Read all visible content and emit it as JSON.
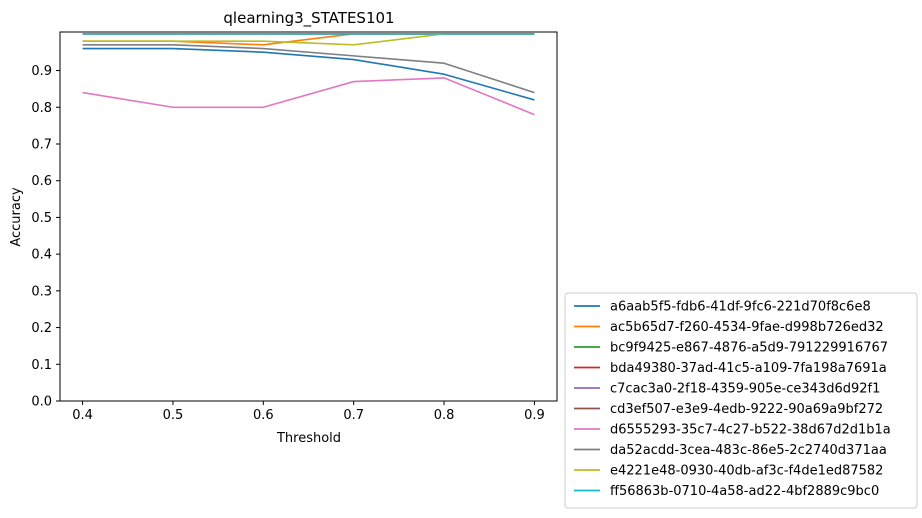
{
  "chart_data": {
    "type": "line",
    "title": "qlearning3_STATES101",
    "xlabel": "Threshold",
    "ylabel": "Accuracy",
    "x": [
      0.4,
      0.5,
      0.6,
      0.7,
      0.8,
      0.9
    ],
    "x_ticks": [
      "0.4",
      "0.5",
      "0.6",
      "0.7",
      "0.8",
      "0.9"
    ],
    "y_ticks": [
      "0.0",
      "0.1",
      "0.2",
      "0.3",
      "0.4",
      "0.5",
      "0.6",
      "0.7",
      "0.8",
      "0.9"
    ],
    "xlim": [
      0.375,
      0.925
    ],
    "ylim": [
      0.0,
      1.005
    ],
    "grid": false,
    "legend_placement": "lower-right-outside",
    "series": [
      {
        "name": "a6aab5f5-fdb6-41df-9fc6-221d70f8c6e8",
        "color": "#1f77b4",
        "values": [
          0.96,
          0.96,
          0.95,
          0.93,
          0.89,
          0.82
        ]
      },
      {
        "name": "ac5b65d7-f260-4534-9fae-d998b726ed32",
        "color": "#ff7f0e",
        "values": [
          0.98,
          0.98,
          0.97,
          1.0,
          1.0,
          1.0
        ]
      },
      {
        "name": "bc9f9425-e867-4876-a5d9-791229916767",
        "color": "#2ca02c",
        "values": [
          1.0,
          1.0,
          1.0,
          1.0,
          1.0,
          1.0
        ]
      },
      {
        "name": "bda49380-37ad-41c5-a109-7fa198a7691a",
        "color": "#d62728",
        "values": [
          1.0,
          1.0,
          1.0,
          1.0,
          1.0,
          1.0
        ]
      },
      {
        "name": "c7cac3a0-2f18-4359-905e-ce343d6d92f1",
        "color": "#9467bd",
        "values": [
          1.0,
          1.0,
          1.0,
          1.0,
          1.0,
          1.0
        ]
      },
      {
        "name": "cd3ef507-e3e9-4edb-9222-90a69a9bf272",
        "color": "#8c564b",
        "values": [
          1.0,
          1.0,
          1.0,
          1.0,
          1.0,
          1.0
        ]
      },
      {
        "name": "d6555293-35c7-4c27-b522-38d67d2d1b1a",
        "color": "#e377c2",
        "values": [
          0.84,
          0.8,
          0.8,
          0.87,
          0.88,
          0.78
        ]
      },
      {
        "name": "da52acdd-3cea-483c-86e5-2c2740d371aa",
        "color": "#7f7f7f",
        "values": [
          0.97,
          0.97,
          0.96,
          0.94,
          0.92,
          0.84
        ]
      },
      {
        "name": "e4221e48-0930-40db-af3c-f4de1ed87582",
        "color": "#bcbd22",
        "values": [
          0.98,
          0.98,
          0.98,
          0.97,
          1.0,
          1.0
        ]
      },
      {
        "name": "ff56863b-0710-4a58-ad22-4bf2889c9bc0",
        "color": "#17becf",
        "values": [
          1.0,
          1.0,
          1.0,
          1.0,
          1.0,
          1.0
        ]
      }
    ]
  }
}
